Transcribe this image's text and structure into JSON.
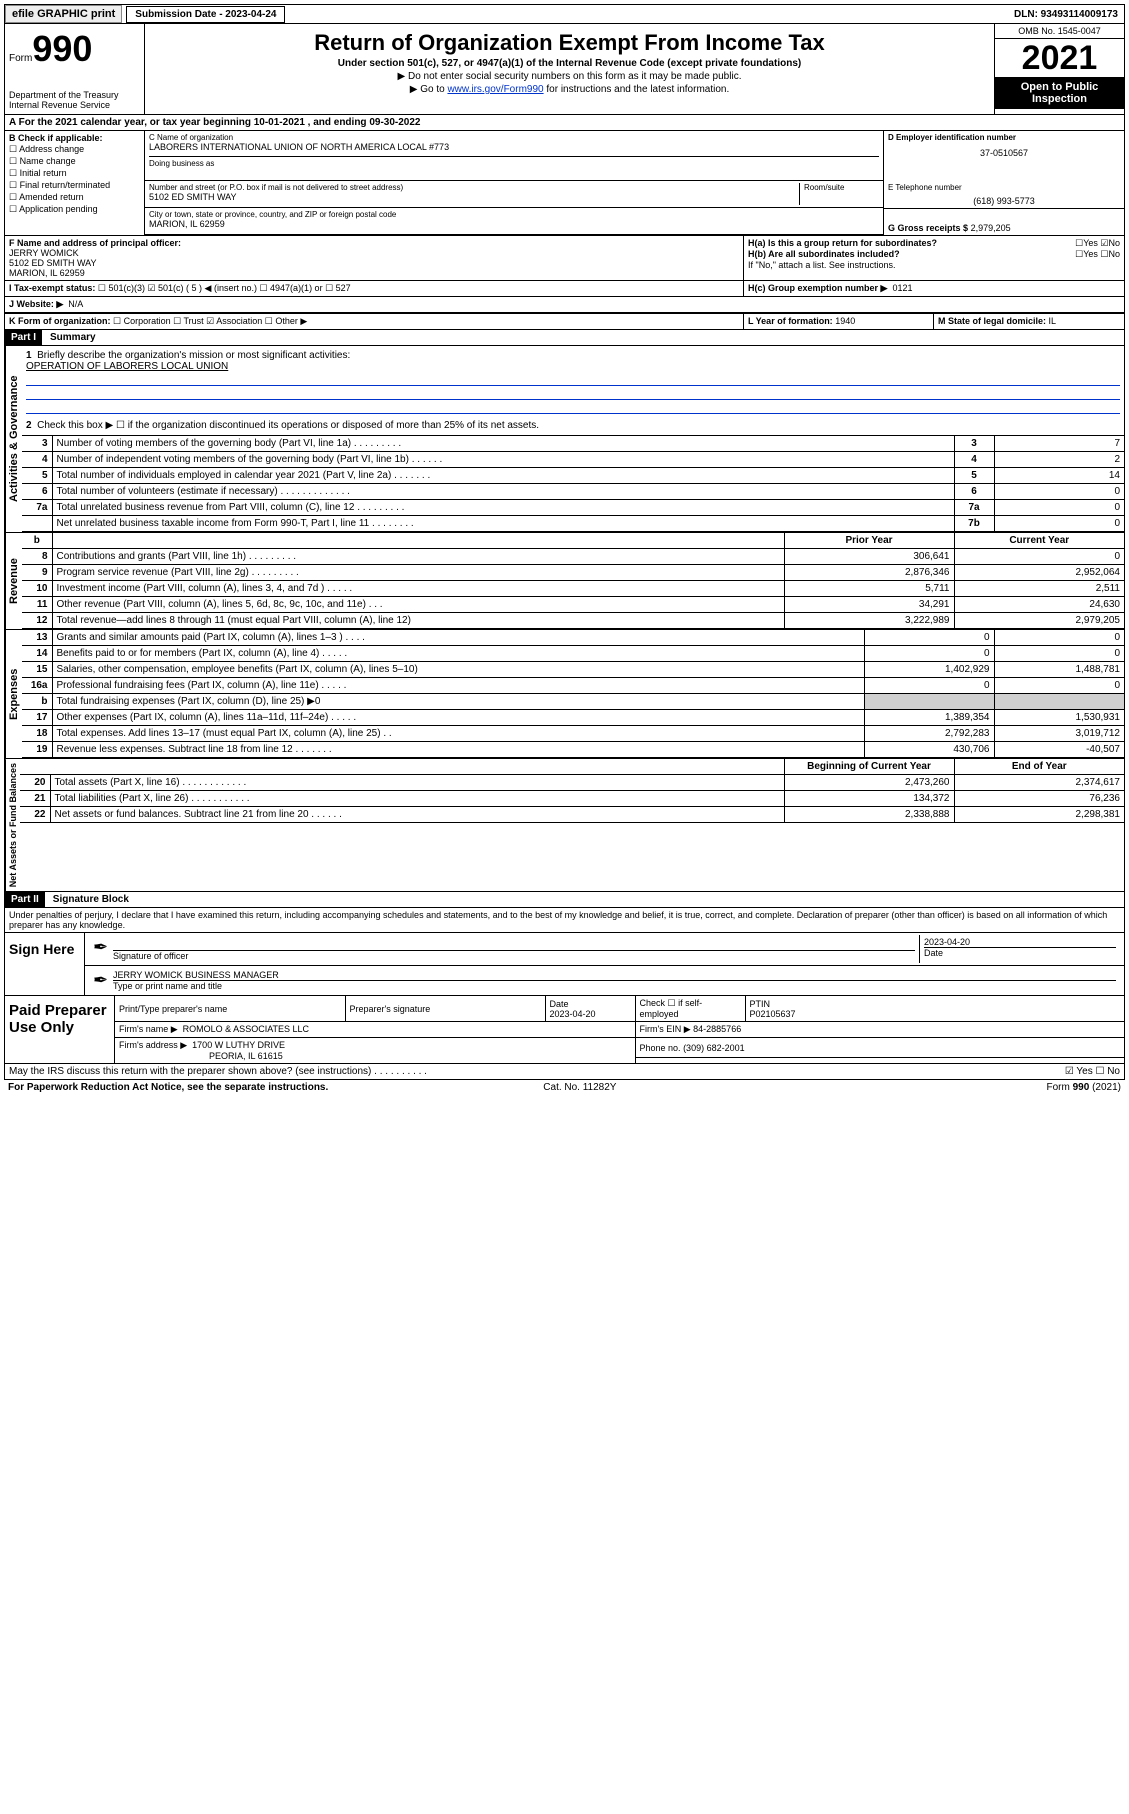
{
  "top": {
    "efile": "efile GRAPHIC print",
    "submission_label": "Submission Date - 2023-04-24",
    "dln": "DLN: 93493114009173"
  },
  "header": {
    "form_word": "Form",
    "form_num": "990",
    "dept": "Department of the Treasury",
    "irs": "Internal Revenue Service",
    "title": "Return of Organization Exempt From Income Tax",
    "sub": "Under section 501(c), 527, or 4947(a)(1) of the Internal Revenue Code (except private foundations)",
    "note1": "▶ Do not enter social security numbers on this form as it may be made public.",
    "note2_pre": "▶ Go to ",
    "note2_link": "www.irs.gov/Form990",
    "note2_post": " for instructions and the latest information.",
    "omb": "OMB No. 1545-0047",
    "year": "2021",
    "inspect": "Open to Public Inspection"
  },
  "rowA": "A For the 2021 calendar year, or tax year beginning 10-01-2021    , and ending 09-30-2022",
  "colB": {
    "label": "B Check if applicable:",
    "items": [
      "Address change",
      "Name change",
      "Initial return",
      "Final return/terminated",
      "Amended return",
      "Application pending"
    ]
  },
  "colC": {
    "name_label": "C Name of organization",
    "name": "LABORERS INTERNATIONAL UNION OF NORTH AMERICA LOCAL #773",
    "dba_label": "Doing business as",
    "addr_label": "Number and street (or P.O. box if mail is not delivered to street address)",
    "room_label": "Room/suite",
    "addr": "5102 ED SMITH WAY",
    "city_label": "City or town, state or province, country, and ZIP or foreign postal code",
    "city": "MARION, IL  62959"
  },
  "colD": {
    "ein_label": "D Employer identification number",
    "ein": "37-0510567",
    "tel_label": "E Telephone number",
    "tel": "(618) 993-5773",
    "gross_label": "G Gross receipts $",
    "gross": "2,979,205"
  },
  "rowF": {
    "label": "F Name and address of principal officer:",
    "name": "JERRY WOMICK",
    "addr1": "5102 ED SMITH WAY",
    "addr2": "MARION, IL  62959"
  },
  "rowH": {
    "ha": "H(a)  Is this a group return for subordinates?",
    "ha_ans": "☐Yes ☑No",
    "hb": "H(b)  Are all subordinates included?",
    "hb_ans": "☐Yes ☐No",
    "hb_note": "If \"No,\" attach a list. See instructions.",
    "hc": "H(c)  Group exemption number ▶",
    "hc_val": "0121"
  },
  "rowI": {
    "label": "I    Tax-exempt status:",
    "opts": "☐ 501(c)(3)   ☑ 501(c) ( 5 ) ◀ (insert no.)    ☐ 4947(a)(1) or   ☐ 527"
  },
  "rowJ": {
    "label": "J   Website: ▶",
    "val": "N/A"
  },
  "rowK": {
    "label": "K Form of organization:",
    "opts": "☐ Corporation  ☐ Trust  ☑ Association  ☐ Other ▶"
  },
  "rowL": {
    "label": "L Year of formation:",
    "val": "1940"
  },
  "rowM": {
    "label": "M State of legal domicile:",
    "val": "IL"
  },
  "part1": {
    "tag": "Part I",
    "title": "Summary"
  },
  "summary": {
    "q1": "Briefly describe the organization's mission or most significant activities:",
    "mission": "OPERATION OF LABORERS LOCAL UNION",
    "q2": "Check this box ▶ ☐  if the organization discontinued its operations or disposed of more than 25% of its net assets."
  },
  "lines_gov": [
    {
      "n": "3",
      "desc": "Number of voting members of the governing body (Part VI, line 1a)   .    .    .    .    .    .    .    .    .",
      "box": "3",
      "v": "7"
    },
    {
      "n": "4",
      "desc": "Number of independent voting members of the governing body (Part VI, line 1b)   .    .    .    .    .    .",
      "box": "4",
      "v": "2"
    },
    {
      "n": "5",
      "desc": "Total number of individuals employed in calendar year 2021 (Part V, line 2a)   .    .    .    .    .    .    .",
      "box": "5",
      "v": "14"
    },
    {
      "n": "6",
      "desc": "Total number of volunteers (estimate if necessary)   .    .    .    .    .    .    .    .    .    .    .    .    .",
      "box": "6",
      "v": "0"
    },
    {
      "n": "7a",
      "desc": "Total unrelated business revenue from Part VIII, column (C), line 12   .    .    .    .    .    .    .    .    .",
      "box": "7a",
      "v": "0"
    },
    {
      "n": "",
      "desc": "Net unrelated business taxable income from Form 990-T, Part I, line 11   .    .    .    .    .    .    .    .",
      "box": "7b",
      "v": "0"
    }
  ],
  "col_headers": {
    "prior": "Prior Year",
    "current": "Current Year"
  },
  "lines_rev": [
    {
      "n": "8",
      "desc": "Contributions and grants (Part VIII, line 1h)   .    .    .    .    .    .    .    .    .",
      "p": "306,641",
      "c": "0"
    },
    {
      "n": "9",
      "desc": "Program service revenue (Part VIII, line 2g)   .    .    .    .    .    .    .    .    .",
      "p": "2,876,346",
      "c": "2,952,064"
    },
    {
      "n": "10",
      "desc": "Investment income (Part VIII, column (A), lines 3, 4, and 7d )   .    .    .    .    .",
      "p": "5,711",
      "c": "2,511"
    },
    {
      "n": "11",
      "desc": "Other revenue (Part VIII, column (A), lines 5, 6d, 8c, 9c, 10c, and 11e)   .    .    .",
      "p": "34,291",
      "c": "24,630"
    },
    {
      "n": "12",
      "desc": "Total revenue—add lines 8 through 11 (must equal Part VIII, column (A), line 12)",
      "p": "3,222,989",
      "c": "2,979,205"
    }
  ],
  "lines_exp": [
    {
      "n": "13",
      "desc": "Grants and similar amounts paid (Part IX, column (A), lines 1–3 )   .    .    .    .",
      "p": "0",
      "c": "0"
    },
    {
      "n": "14",
      "desc": "Benefits paid to or for members (Part IX, column (A), line 4)   .    .    .    .    .",
      "p": "0",
      "c": "0"
    },
    {
      "n": "15",
      "desc": "Salaries, other compensation, employee benefits (Part IX, column (A), lines 5–10)",
      "p": "1,402,929",
      "c": "1,488,781"
    },
    {
      "n": "16a",
      "desc": "Professional fundraising fees (Part IX, column (A), line 11e)   .    .    .    .    .",
      "p": "0",
      "c": "0"
    },
    {
      "n": "b",
      "desc": "Total fundraising expenses (Part IX, column (D), line 25) ▶0",
      "p": "shade",
      "c": "shade"
    },
    {
      "n": "17",
      "desc": "Other expenses (Part IX, column (A), lines 11a–11d, 11f–24e)   .    .    .    .    .",
      "p": "1,389,354",
      "c": "1,530,931"
    },
    {
      "n": "18",
      "desc": "Total expenses. Add lines 13–17 (must equal Part IX, column (A), line 25)   .    .",
      "p": "2,792,283",
      "c": "3,019,712"
    },
    {
      "n": "19",
      "desc": "Revenue less expenses. Subtract line 18 from line 12   .    .    .    .    .    .    .",
      "p": "430,706",
      "c": "-40,507"
    }
  ],
  "col_headers2": {
    "begin": "Beginning of Current Year",
    "end": "End of Year"
  },
  "lines_net": [
    {
      "n": "20",
      "desc": "Total assets (Part X, line 16)   .    .    .    .    .    .    .    .    .    .    .    .",
      "p": "2,473,260",
      "c": "2,374,617"
    },
    {
      "n": "21",
      "desc": "Total liabilities (Part X, line 26)   .    .    .    .    .    .    .    .    .    .    .",
      "p": "134,372",
      "c": "76,236"
    },
    {
      "n": "22",
      "desc": "Net assets or fund balances. Subtract line 21 from line 20   .    .    .    .    .    .",
      "p": "2,338,888",
      "c": "2,298,381"
    }
  ],
  "part2": {
    "tag": "Part II",
    "title": "Signature Block"
  },
  "sig": {
    "decl": "Under penalties of perjury, I declare that I have examined this return, including accompanying schedules and statements, and to the best of my knowledge and belief, it is true, correct, and complete. Declaration of preparer (other than officer) is based on all information of which preparer has any knowledge.",
    "sign_here": "Sign Here",
    "sig_officer": "Signature of officer",
    "date": "2023-04-20",
    "date_label": "Date",
    "name": "JERRY WOMICK  BUSINESS MANAGER",
    "name_label": "Type or print name and title"
  },
  "prep": {
    "label": "Paid Preparer Use Only",
    "h1": "Print/Type preparer's name",
    "h2": "Preparer's signature",
    "h3": "Date",
    "date": "2023-04-20",
    "h4_a": "Check ☐ if self-employed",
    "h5": "PTIN",
    "ptin": "P02105637",
    "firm_name_l": "Firm's name    ▶",
    "firm_name": "ROMOLO & ASSOCIATES LLC",
    "firm_ein_l": "Firm's EIN ▶",
    "firm_ein": "84-2885766",
    "firm_addr_l": "Firm's address ▶",
    "firm_addr1": "1700 W LUTHY DRIVE",
    "firm_addr2": "PEORIA, IL  61615",
    "phone_l": "Phone no.",
    "phone": "(309) 682-2001"
  },
  "discuss": {
    "q": "May the IRS discuss this return with the preparer shown above? (see instructions)   .    .    .    .    .    .    .    .    .    .",
    "ans": "☑ Yes   ☐ No"
  },
  "footer": {
    "left": "For Paperwork Reduction Act Notice, see the separate instructions.",
    "mid": "Cat. No. 11282Y",
    "right": "Form 990 (2021)"
  },
  "vlabels": {
    "gov": "Activities & Governance",
    "rev": "Revenue",
    "exp": "Expenses",
    "net": "Net Assets or Fund Balances"
  }
}
